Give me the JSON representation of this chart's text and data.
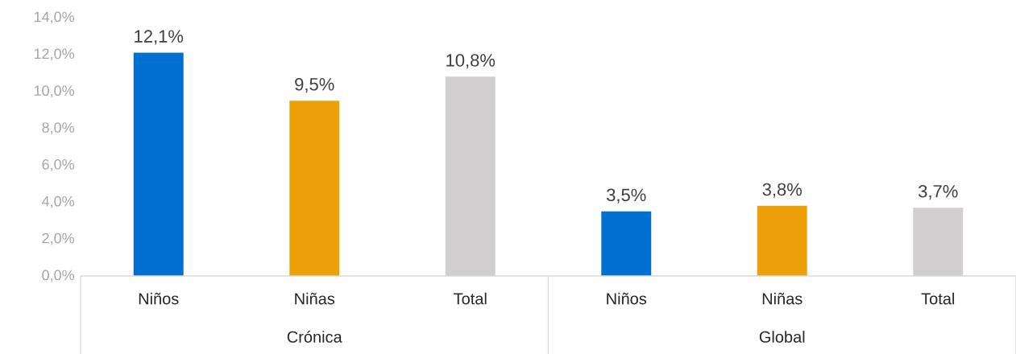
{
  "chart_data": {
    "type": "bar",
    "categories": [
      "Niños",
      "Niñas",
      "Total",
      "Niños",
      "Niñas",
      "Total"
    ],
    "values": [
      12.1,
      9.5,
      10.8,
      3.5,
      3.8,
      3.7
    ],
    "colors": [
      "#0070d0",
      "#eca00a",
      "#d0cecf",
      "#0070d0",
      "#eca00a",
      "#d0cecf"
    ],
    "value_labels": [
      "12,1%",
      "9,5%",
      "10,8%",
      "3,5%",
      "3,8%",
      "3,7%"
    ],
    "ylim": [
      0,
      14
    ],
    "yticks": [
      {
        "value": 0,
        "label": "0,0%"
      },
      {
        "value": 2,
        "label": "2,0%"
      },
      {
        "value": 4,
        "label": "4,0%"
      },
      {
        "value": 6,
        "label": "6,0%"
      },
      {
        "value": 8,
        "label": "8,0%"
      },
      {
        "value": 10,
        "label": "10,0%"
      },
      {
        "value": 12,
        "label": "12,0%"
      },
      {
        "value": 14,
        "label": "14,0%"
      }
    ],
    "annotations": [
      "Crónica",
      "Global"
    ],
    "grid": false
  }
}
